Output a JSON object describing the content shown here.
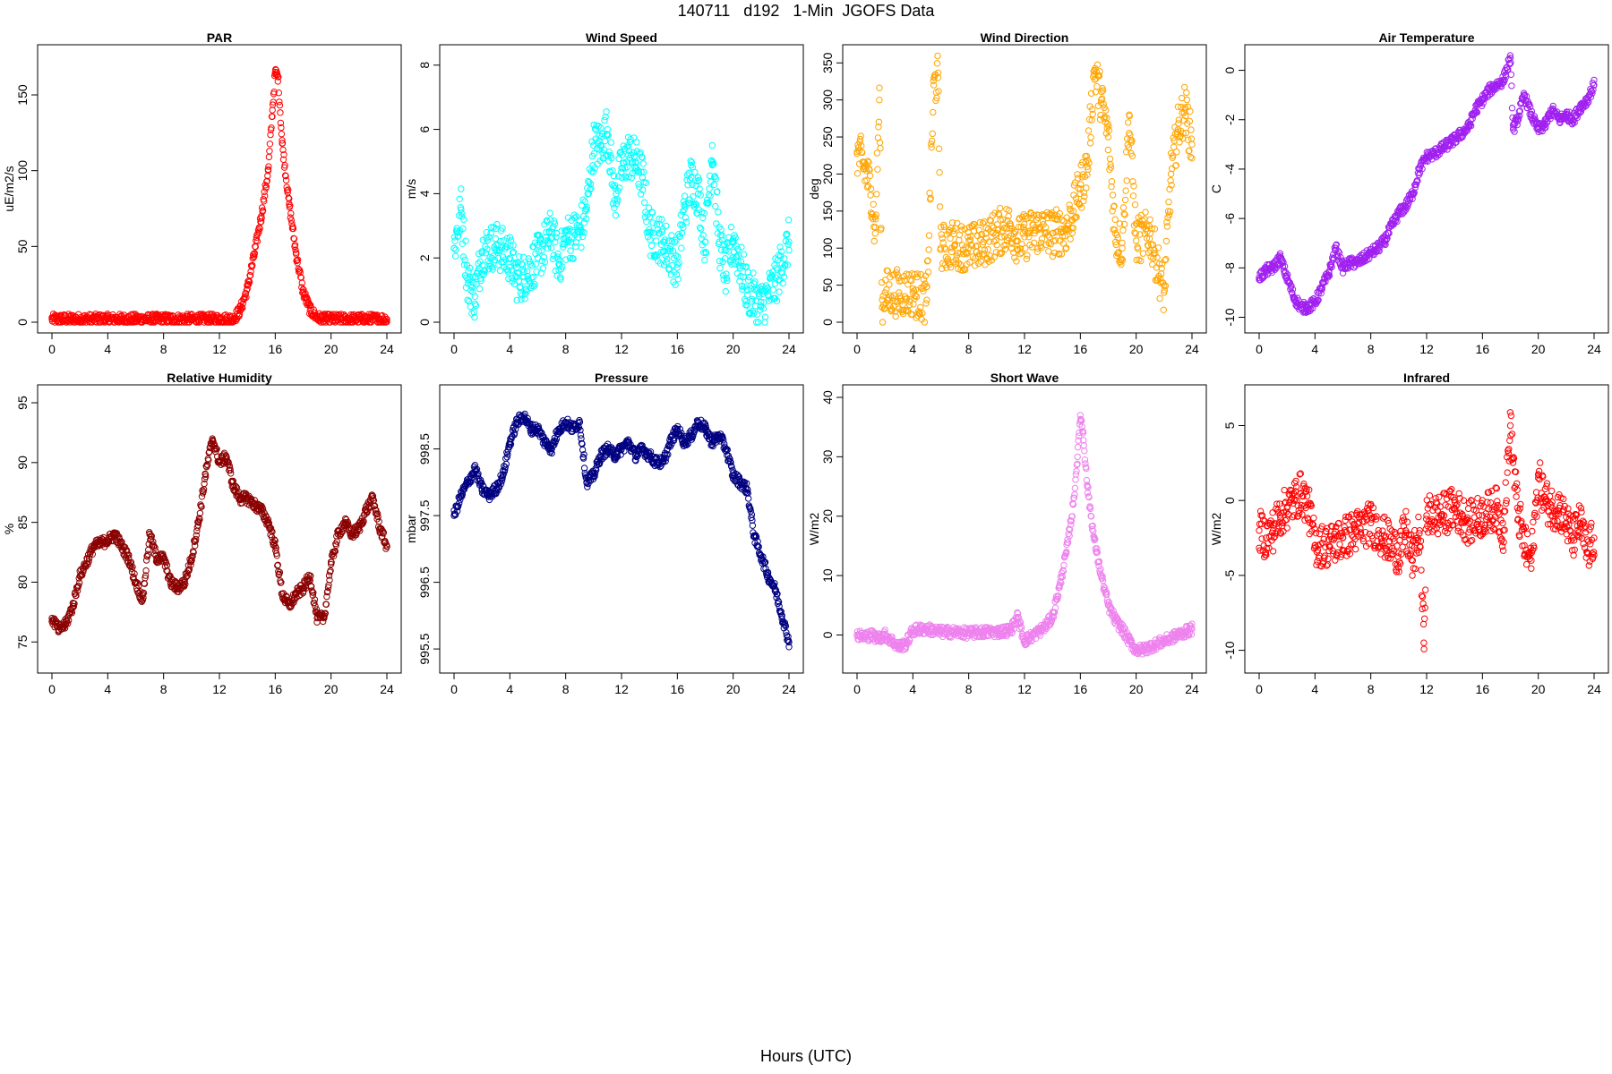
{
  "figure": {
    "title": "140711   d192   1-Min  JGOFS Data",
    "xlabel": "Hours (UTC)"
  },
  "chart_data": [
    {
      "type": "scatter",
      "title": "PAR",
      "ylabel": "uE/m2/s",
      "color": "#ff0000",
      "xlim": [
        0,
        24
      ],
      "ylim": [
        0,
        176
      ],
      "xticks": [
        0,
        4,
        8,
        12,
        16,
        20,
        24
      ],
      "yticks": [
        0,
        50,
        100,
        150
      ],
      "x": [
        0,
        2,
        4,
        6,
        8,
        10,
        12,
        13,
        13.5,
        14,
        14.5,
        15,
        15.5,
        15.8,
        16.0,
        16.2,
        16.5,
        17,
        17.5,
        18,
        18.5,
        19,
        19.5,
        20,
        21.5,
        22,
        24
      ],
      "y": [
        2,
        2,
        2,
        2,
        2,
        2,
        2,
        2,
        8,
        22,
        45,
        70,
        100,
        140,
        165,
        162,
        118,
        78,
        45,
        20,
        8,
        3,
        2,
        2,
        2,
        2,
        2
      ]
    },
    {
      "type": "scatter",
      "title": "Wind Speed",
      "ylabel": "m/s",
      "color": "#00ffff",
      "xlim": [
        0,
        24
      ],
      "ylim": [
        0,
        8.3
      ],
      "xticks": [
        0,
        4,
        8,
        12,
        16,
        20,
        24
      ],
      "yticks": [
        0,
        2,
        4,
        6,
        8
      ],
      "x": [
        0,
        0.5,
        1,
        1.5,
        2,
        3,
        4,
        4.5,
        5,
        6,
        7,
        7.5,
        8,
        9,
        9.5,
        10,
        10.5,
        11,
        11.5,
        12,
        12.5,
        13,
        13.5,
        14,
        15,
        16,
        16.5,
        17,
        17.5,
        18,
        18.5,
        19,
        19.5,
        20,
        21,
        22,
        23,
        24
      ],
      "y": [
        2.3,
        3.5,
        1.2,
        0.8,
        2.2,
        2.4,
        2.0,
        1.4,
        1.4,
        2.0,
        2.8,
        1.8,
        2.6,
        2.8,
        3.5,
        5.5,
        5.5,
        6.0,
        3.8,
        4.8,
        5.2,
        5.0,
        4.5,
        2.8,
        2.5,
        1.8,
        3.5,
        4.5,
        4.0,
        2.5,
        5.5,
        2.5,
        1.5,
        2.6,
        1.0,
        0.5,
        1.2,
        2.5
      ]
    },
    {
      "type": "scatter",
      "title": "Wind Direction",
      "ylabel": "deg",
      "color": "#ffa500",
      "xlim": [
        0,
        24
      ],
      "ylim": [
        0,
        360
      ],
      "xticks": [
        0,
        4,
        8,
        12,
        16,
        20,
        24
      ],
      "yticks": [
        0,
        50,
        100,
        150,
        200,
        250,
        300,
        350
      ],
      "x": [
        0,
        0.5,
        1,
        1.3,
        1.6,
        1.8,
        2,
        3,
        4,
        5,
        5.5,
        5.8,
        6,
        7,
        8,
        9,
        10,
        11,
        11.5,
        12,
        13,
        14,
        15,
        15.5,
        16,
        16.5,
        17,
        17.5,
        18,
        18.5,
        19,
        19.5,
        20,
        21,
        22,
        22.5,
        23,
        23.5,
        24
      ],
      "y": [
        230,
        210,
        180,
        120,
        300,
        20,
        40,
        40,
        40,
        30,
        320,
        330,
        100,
        105,
        100,
        105,
        120,
        130,
        110,
        115,
        125,
        120,
        125,
        150,
        180,
        210,
        340,
        300,
        250,
        120,
        100,
        280,
        110,
        120,
        40,
        200,
        260,
        290,
        240
      ]
    },
    {
      "type": "scatter",
      "title": "Air Temperature",
      "ylabel": "C",
      "color": "#a020f0",
      "xlim": [
        0,
        24
      ],
      "ylim": [
        -10.2,
        0.6
      ],
      "xticks": [
        0,
        4,
        8,
        12,
        16,
        20,
        24
      ],
      "yticks": [
        -10,
        -8,
        -6,
        -4,
        -2,
        0
      ],
      "x": [
        0,
        0.5,
        1,
        1.5,
        2,
        2.5,
        3,
        3.5,
        4,
        4.5,
        5,
        5.5,
        6,
        6.5,
        7,
        7.5,
        8,
        8.5,
        9,
        9.5,
        10,
        10.5,
        11,
        11.5,
        12,
        12.5,
        13,
        14,
        15,
        15.5,
        16,
        16.5,
        17,
        17.5,
        18,
        18.2,
        18.5,
        19,
        19.5,
        20,
        20.5,
        21,
        21.5,
        22,
        22.5,
        23,
        23.5,
        24
      ],
      "y": [
        -8.4,
        -8.1,
        -8.0,
        -7.6,
        -8.4,
        -9.2,
        -9.6,
        -9.6,
        -9.4,
        -8.8,
        -8.2,
        -7.2,
        -8.0,
        -7.8,
        -7.8,
        -7.6,
        -7.4,
        -7.2,
        -6.9,
        -6.3,
        -5.8,
        -5.5,
        -5.0,
        -4.0,
        -3.5,
        -3.4,
        -3.2,
        -2.8,
        -2.3,
        -1.6,
        -1.2,
        -0.8,
        -0.6,
        -0.4,
        0.5,
        -2.4,
        -2.0,
        -1.0,
        -1.8,
        -2.4,
        -2.2,
        -1.6,
        -2.0,
        -1.8,
        -2.0,
        -1.5,
        -1.2,
        -0.6
      ]
    },
    {
      "type": "scatter",
      "title": "Relative Humidity",
      "ylabel": "%",
      "color": "#8b0000",
      "xlim": [
        0,
        24
      ],
      "ylim": [
        73.3,
        95.6
      ],
      "xticks": [
        0,
        4,
        8,
        12,
        16,
        20,
        24
      ],
      "yticks": [
        75,
        80,
        85,
        90,
        95
      ],
      "x": [
        0,
        0.5,
        1,
        1.5,
        2,
        3,
        4,
        4.5,
        5,
        5.5,
        6,
        6.5,
        7,
        7.5,
        8,
        8.5,
        9,
        9.5,
        10,
        10.5,
        11,
        11.5,
        12,
        12.5,
        13,
        13.5,
        14,
        14.5,
        15,
        15.5,
        16,
        16.5,
        17,
        17.5,
        18,
        18.5,
        19,
        19.5,
        20,
        20.5,
        21,
        21.5,
        22,
        22.5,
        23,
        23.5,
        24
      ],
      "y": [
        77,
        76,
        76.5,
        78,
        80.5,
        83,
        83.5,
        84,
        83,
        82,
        80,
        78.5,
        84,
        82,
        82,
        80,
        79.5,
        80,
        82,
        85,
        89,
        92,
        90,
        90.5,
        88,
        87,
        87,
        86.5,
        86,
        85,
        83,
        79,
        78,
        79,
        79.5,
        80.5,
        77,
        77,
        81.5,
        84,
        85,
        84,
        84.5,
        86,
        87,
        84.5,
        83
      ]
    },
    {
      "type": "scatter",
      "title": "Pressure",
      "ylabel": "mbar",
      "color": "#000080",
      "xlim": [
        0,
        24
      ],
      "ylim": [
        995.3,
        999.3
      ],
      "xticks": [
        0,
        4,
        8,
        12,
        16,
        20,
        24
      ],
      "yticks": [
        995.5,
        996.5,
        997.5,
        998.5
      ],
      "yticklabels": [
        "995.5",
        "996.5",
        "997.5",
        "998.5"
      ],
      "x": [
        0,
        0.5,
        1,
        1.5,
        2,
        2.5,
        3,
        3.5,
        4,
        4.5,
        5,
        5.5,
        6,
        6.5,
        7,
        7.5,
        8,
        8.5,
        9,
        9.5,
        10,
        10.5,
        11,
        11.5,
        12,
        12.5,
        13,
        13.5,
        14,
        14.5,
        15,
        15.5,
        16,
        16.5,
        17,
        17.5,
        18,
        18.5,
        19,
        19.5,
        20,
        20.5,
        21,
        21.5,
        22,
        22.5,
        23,
        23.5,
        24
      ],
      "y": [
        997.5,
        997.8,
        998.0,
        998.2,
        997.9,
        997.8,
        997.9,
        998.1,
        998.6,
        998.9,
        999.0,
        998.8,
        998.8,
        998.6,
        998.5,
        998.8,
        998.9,
        998.8,
        998.9,
        998.0,
        998.1,
        998.4,
        998.5,
        998.4,
        998.5,
        998.6,
        998.4,
        998.5,
        998.4,
        998.3,
        998.3,
        998.6,
        998.8,
        998.6,
        998.7,
        998.9,
        998.8,
        998.6,
        998.7,
        998.5,
        998.1,
        998.0,
        997.9,
        997.2,
        996.9,
        996.6,
        996.4,
        996.0,
        995.6
      ]
    },
    {
      "type": "scatter",
      "title": "Short Wave",
      "ylabel": "W/m2",
      "color": "#ee82ee",
      "xlim": [
        0,
        24
      ],
      "ylim": [
        -4.6,
        40.3
      ],
      "xticks": [
        0,
        4,
        8,
        12,
        16,
        20,
        24
      ],
      "yticks": [
        0,
        10,
        20,
        30,
        40
      ],
      "x": [
        0,
        0.5,
        1,
        1.5,
        2,
        2.5,
        3,
        3.5,
        4,
        5,
        6,
        7,
        8,
        9,
        10,
        11,
        11.5,
        12,
        13,
        13.5,
        14,
        14.5,
        15,
        15.5,
        15.8,
        16.0,
        16.2,
        16.5,
        17,
        17.5,
        18,
        18.5,
        19,
        19.5,
        20,
        20.5,
        21,
        22,
        23,
        24
      ],
      "y": [
        0,
        -0.3,
        0,
        -0.5,
        0,
        -1,
        -2,
        -1.5,
        0.8,
        1,
        0.5,
        0.5,
        0.3,
        0.5,
        0.5,
        0.8,
        3,
        -1,
        0.5,
        1.5,
        3,
        8,
        14,
        22,
        30,
        37,
        34,
        25,
        16,
        10,
        5,
        2.5,
        1,
        -1,
        -2.5,
        -2.5,
        -2,
        -1,
        0,
        1
      ]
    },
    {
      "type": "scatter",
      "title": "Infrared",
      "ylabel": "W/m2",
      "color": "#ff0000",
      "xlim": [
        0,
        24
      ],
      "ylim": [
        -10.8,
        7.0
      ],
      "xticks": [
        0,
        4,
        8,
        12,
        16,
        20,
        24
      ],
      "yticks": [
        -10,
        -5,
        0,
        5
      ],
      "x": [
        0,
        0.5,
        1,
        1.5,
        2,
        2.5,
        3,
        3.5,
        4,
        5,
        6,
        7,
        8,
        9,
        10,
        10.5,
        11,
        11.5,
        11.8,
        12,
        13,
        14,
        15,
        16,
        17,
        17.5,
        18,
        18.5,
        19,
        19.5,
        20,
        20.5,
        21,
        21.5,
        22,
        22.5,
        23,
        23.5,
        24
      ],
      "y": [
        -2,
        -2.5,
        -2,
        -1,
        -0.5,
        0,
        0.5,
        -0.3,
        -3,
        -3,
        -2.5,
        -2,
        -1.5,
        -2.5,
        -3.5,
        -2,
        -4,
        -2,
        -9.5,
        -1,
        -1,
        -0.5,
        -1.5,
        -1,
        -0.5,
        -2,
        5,
        -0.5,
        -3,
        -4,
        1.5,
        0,
        -0.5,
        -0.5,
        -1.5,
        -2.5,
        -1.5,
        -3.5,
        -2.5
      ]
    }
  ]
}
